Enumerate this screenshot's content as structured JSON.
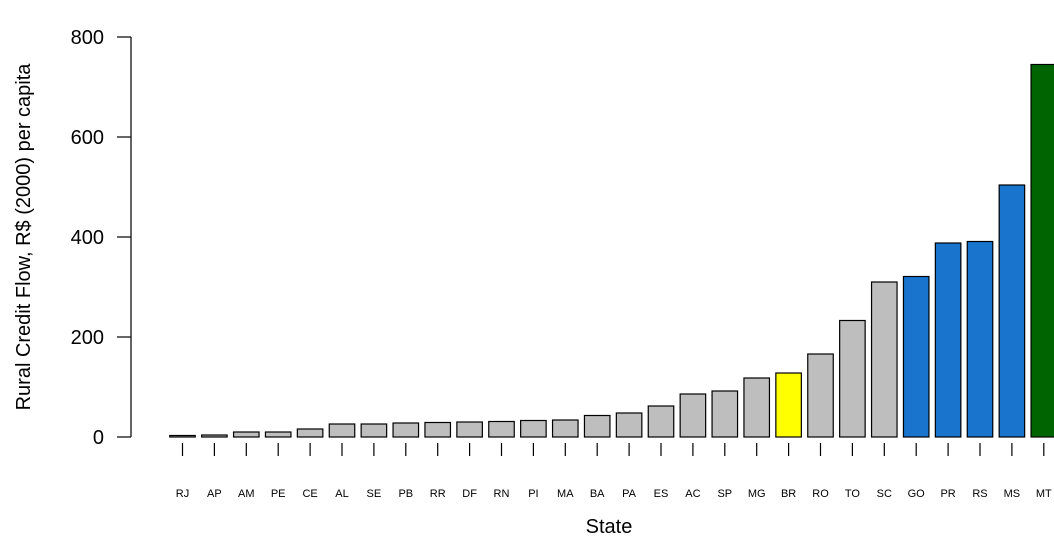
{
  "chart_data": {
    "type": "bar",
    "title": "",
    "xlabel": "State",
    "ylabel": "Rural Credit Flow, R$ (2000) per capita",
    "ylim": [
      0,
      800
    ],
    "yticks": [
      0,
      200,
      400,
      600,
      800
    ],
    "grid": false,
    "categories": [
      "RJ",
      "AP",
      "AM",
      "PE",
      "CE",
      "AL",
      "SE",
      "PB",
      "RR",
      "DF",
      "RN",
      "PI",
      "MA",
      "BA",
      "PA",
      "ES",
      "AC",
      "SP",
      "MG",
      "BR",
      "RO",
      "TO",
      "SC",
      "GO",
      "PR",
      "RS",
      "MS",
      "MT"
    ],
    "values": [
      3,
      4,
      10,
      10,
      16,
      26,
      26,
      28,
      29,
      30,
      31,
      33,
      34,
      43,
      48,
      62,
      86,
      92,
      118,
      128,
      166,
      233,
      310,
      321,
      388,
      391,
      504,
      745
    ],
    "colors": [
      "#bebebe",
      "#bebebe",
      "#bebebe",
      "#bebebe",
      "#bebebe",
      "#bebebe",
      "#bebebe",
      "#bebebe",
      "#bebebe",
      "#bebebe",
      "#bebebe",
      "#bebebe",
      "#bebebe",
      "#bebebe",
      "#bebebe",
      "#bebebe",
      "#bebebe",
      "#bebebe",
      "#bebebe",
      "#ffff00",
      "#bebebe",
      "#bebebe",
      "#bebebe",
      "#1874cd",
      "#1874cd",
      "#1874cd",
      "#1874cd",
      "#006400"
    ]
  }
}
